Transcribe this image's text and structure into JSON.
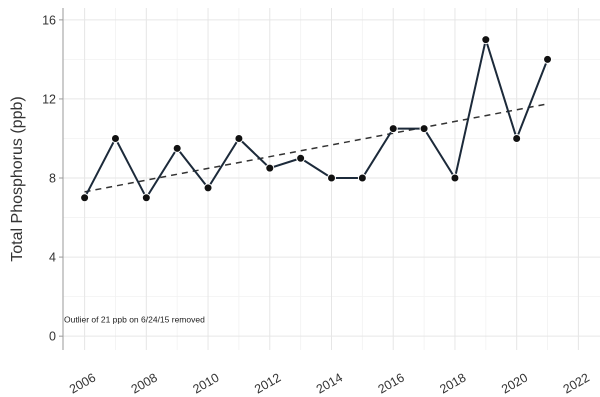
{
  "chart_data": {
    "type": "line",
    "title": "",
    "xlabel": "",
    "ylabel": "Total Phosphorus (ppb)",
    "xlim": [
      2005.3,
      2022.7
    ],
    "ylim": [
      -0.7,
      16.6
    ],
    "x_ticks": [
      2006,
      2008,
      2010,
      2012,
      2014,
      2016,
      2018,
      2020,
      2022
    ],
    "y_ticks": [
      0,
      4,
      8,
      12,
      16
    ],
    "grid": true,
    "legend": "none",
    "annotation": "Outlier of 21 ppb on 6/24/15 removed",
    "series": [
      {
        "x": [
          2006,
          2007,
          2008,
          2009,
          2010,
          2011,
          2012,
          2013,
          2014,
          2015,
          2016,
          2017,
          2018,
          2019,
          2020,
          2021
        ],
        "y": [
          7.0,
          10.0,
          7.0,
          9.5,
          7.5,
          10.0,
          8.5,
          9.0,
          8.0,
          8.0,
          10.5,
          10.5,
          8.0,
          15.0,
          10.0,
          14.0
        ],
        "color": "#1c2a3a"
      }
    ],
    "trend_line": {
      "x": [
        2006,
        2021
      ],
      "y": [
        7.3,
        11.75
      ],
      "style": "dashed",
      "color": "#333333"
    }
  }
}
